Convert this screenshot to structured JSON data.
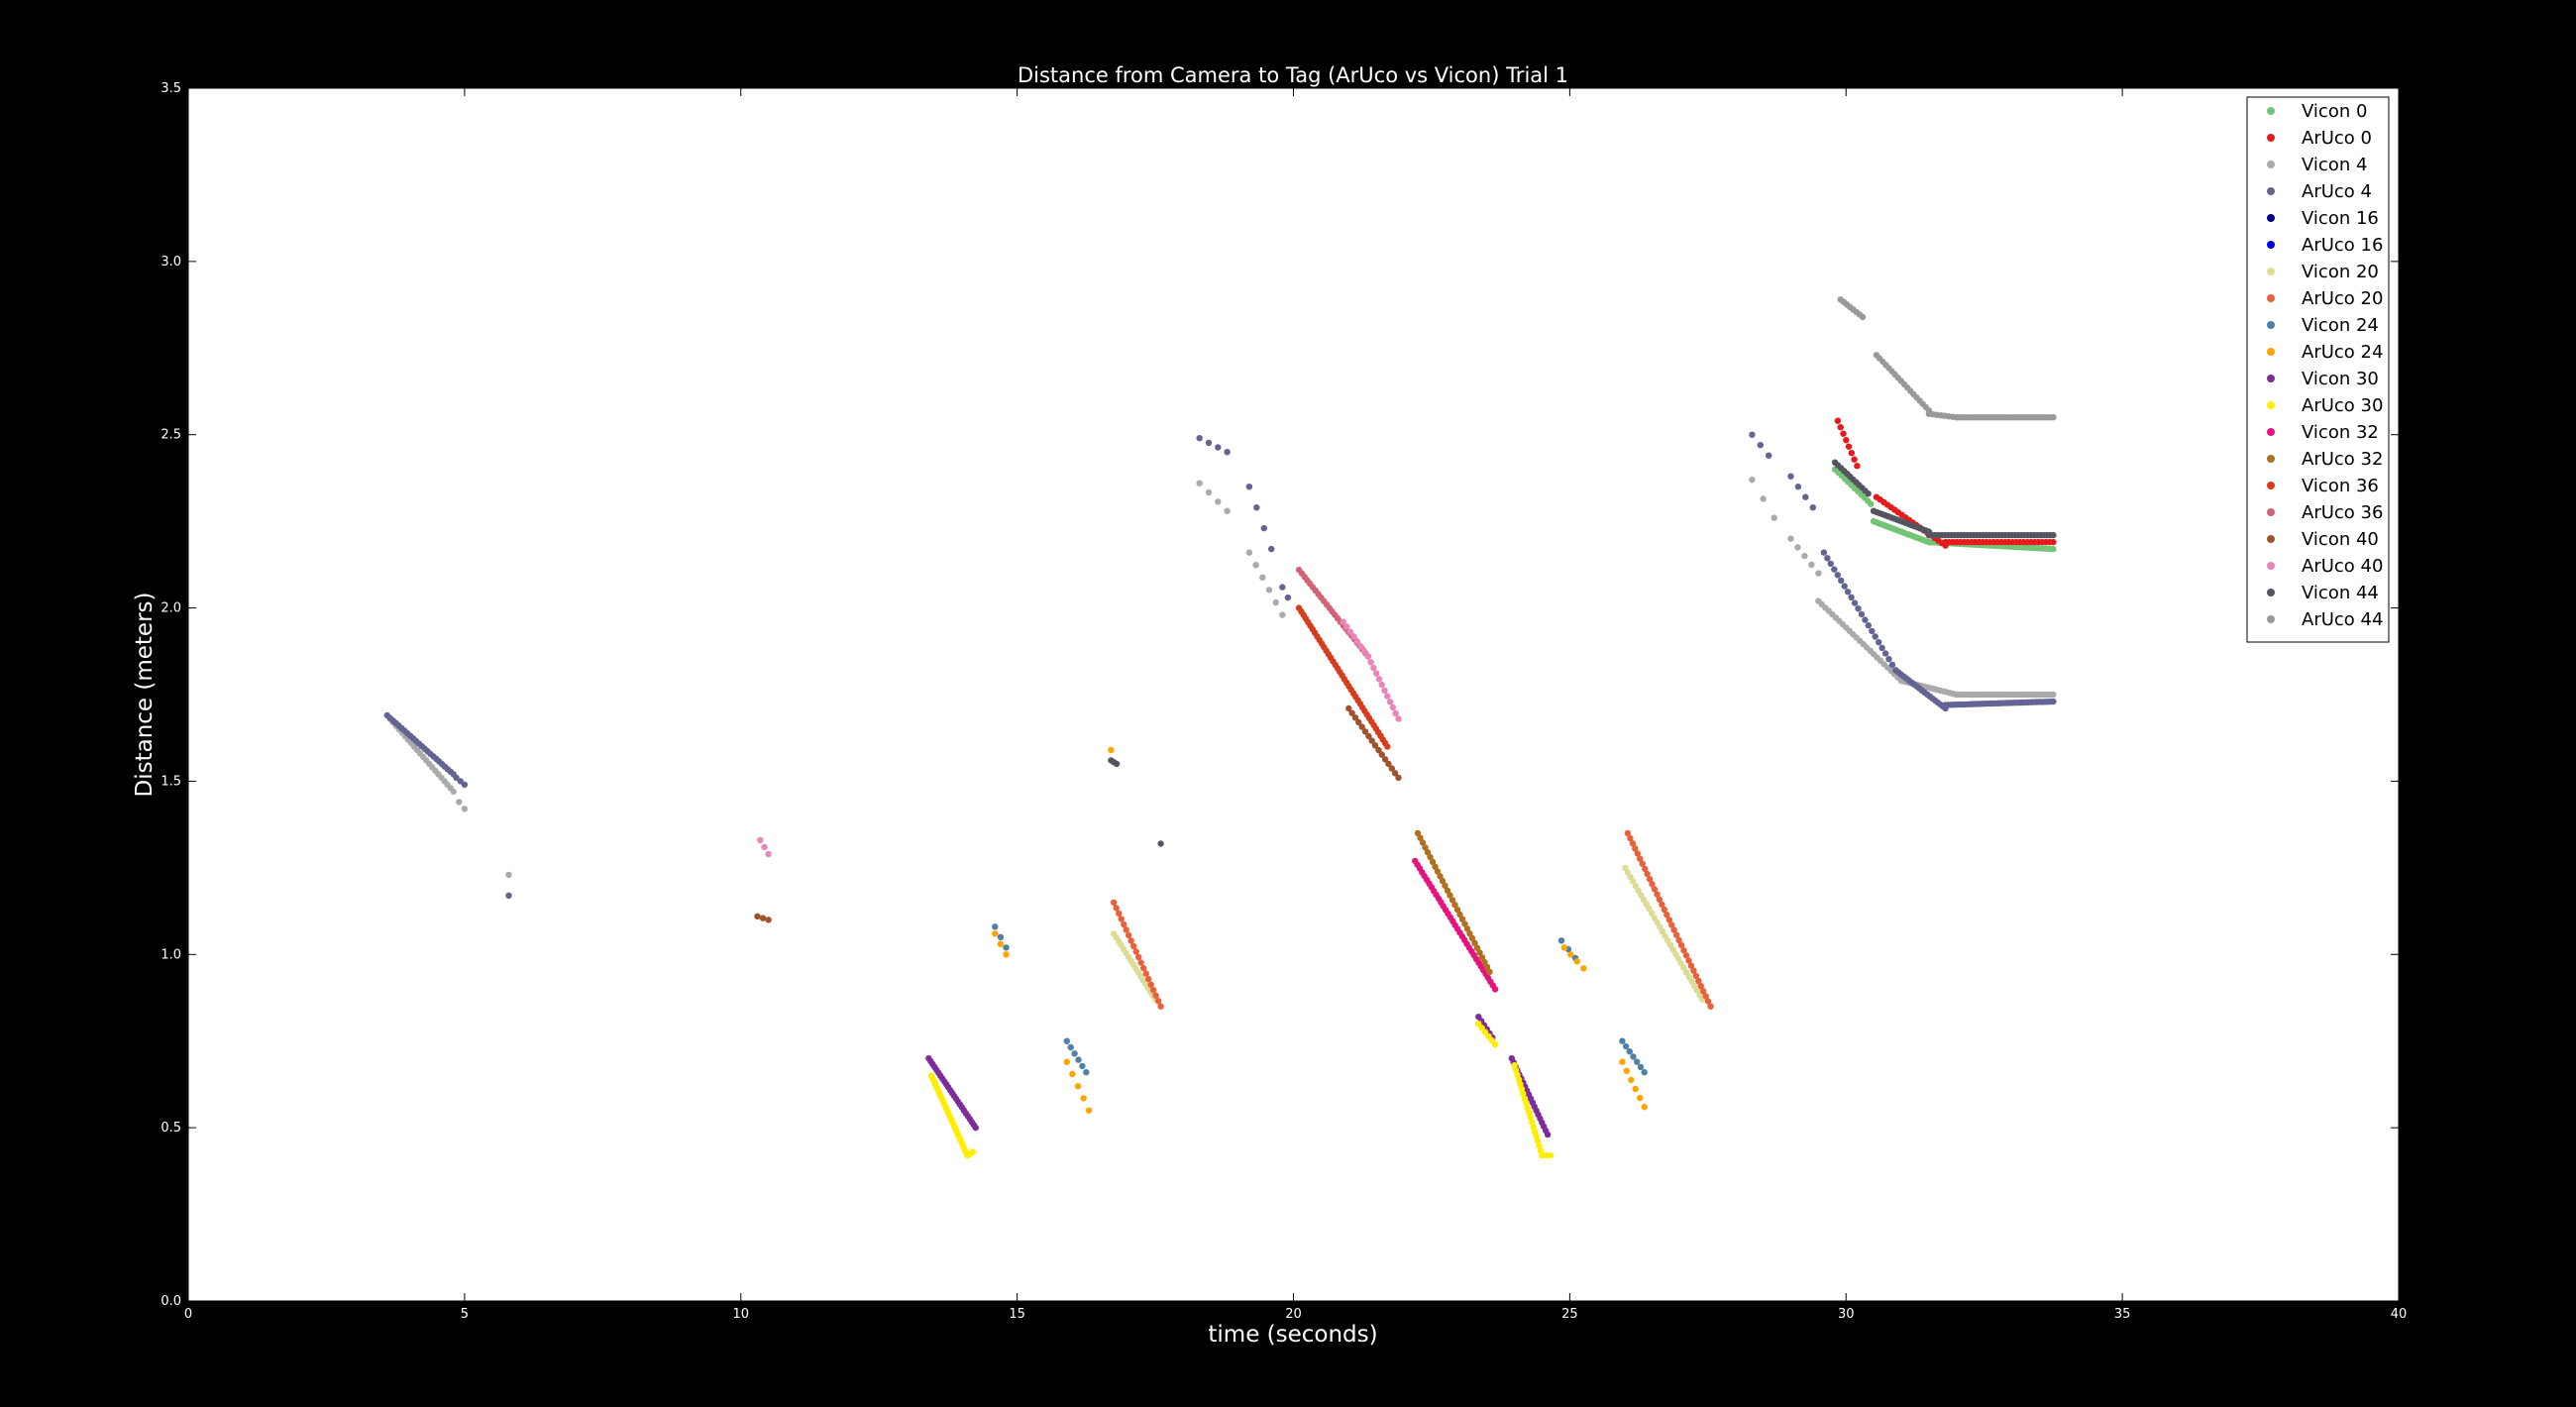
{
  "chart_data": {
    "type": "scatter",
    "title": "Distance from Camera to Tag (ArUco vs Vicon) Trial 1",
    "xlabel": "time (seconds)",
    "ylabel": "Distance (meters)",
    "xlim": [
      0,
      40
    ],
    "ylim": [
      0,
      3.5
    ],
    "xticks": [
      "0",
      "5",
      "10",
      "15",
      "20",
      "25",
      "30",
      "35",
      "40"
    ],
    "yticks": [
      "0.0",
      "0.5",
      "1.0",
      "1.5",
      "2.0",
      "2.5",
      "3.0",
      "3.5"
    ],
    "grid": false,
    "legend_position": "top-right",
    "background": "#000000",
    "plot_background": "#ffffff",
    "series": [
      {
        "name": "Vicon 0",
        "color": "#74c476",
        "segments": [
          {
            "x0": 29.8,
            "y0": 2.4,
            "x1": 30.45,
            "y1": 2.3,
            "n": 12
          },
          {
            "x0": 30.5,
            "y0": 2.25,
            "x1": 31.5,
            "y1": 2.19,
            "n": 25
          },
          {
            "x0": 31.5,
            "y0": 2.19,
            "x1": 33.75,
            "y1": 2.17,
            "n": 45
          }
        ]
      },
      {
        "name": "ArUco 0",
        "color": "#e41a1c",
        "segments": [
          {
            "x0": 29.85,
            "y0": 2.54,
            "x1": 30.2,
            "y1": 2.41,
            "n": 8
          },
          {
            "x0": 30.55,
            "y0": 2.32,
            "x1": 31.8,
            "y1": 2.18,
            "n": 20
          },
          {
            "x0": 31.8,
            "y0": 2.19,
            "x1": 33.75,
            "y1": 2.19,
            "n": 30
          }
        ]
      },
      {
        "name": "Vicon 4",
        "color": "#aaaaaa",
        "segments": [
          {
            "x0": 3.65,
            "y0": 1.68,
            "x1": 4.8,
            "y1": 1.47,
            "n": 22
          },
          {
            "x0": 4.9,
            "y0": 1.44,
            "x1": 5.0,
            "y1": 1.42,
            "n": 2
          },
          {
            "x0": 5.8,
            "y0": 1.23,
            "x1": 5.8,
            "y1": 1.23,
            "n": 1
          },
          {
            "x0": 18.3,
            "y0": 2.36,
            "x1": 18.8,
            "y1": 2.28,
            "n": 4
          },
          {
            "x0": 19.2,
            "y0": 2.16,
            "x1": 19.8,
            "y1": 1.98,
            "n": 6
          },
          {
            "x0": 28.3,
            "y0": 2.37,
            "x1": 28.7,
            "y1": 2.26,
            "n": 3
          },
          {
            "x0": 29.0,
            "y0": 2.2,
            "x1": 29.5,
            "y1": 2.1,
            "n": 5
          },
          {
            "x0": 29.5,
            "y0": 2.02,
            "x1": 31.0,
            "y1": 1.79,
            "n": 25
          },
          {
            "x0": 31.0,
            "y0": 1.79,
            "x1": 32.0,
            "y1": 1.75,
            "n": 18
          },
          {
            "x0": 32.0,
            "y0": 1.75,
            "x1": 33.75,
            "y1": 1.75,
            "n": 35
          }
        ]
      },
      {
        "name": "ArUco 4",
        "color": "#636394",
        "segments": [
          {
            "x0": 3.6,
            "y0": 1.69,
            "x1": 4.8,
            "y1": 1.52,
            "n": 24
          },
          {
            "x0": 4.85,
            "y0": 1.51,
            "x1": 5.0,
            "y1": 1.49,
            "n": 3
          },
          {
            "x0": 5.8,
            "y0": 1.17,
            "x1": 5.8,
            "y1": 1.17,
            "n": 1
          },
          {
            "x0": 18.3,
            "y0": 2.49,
            "x1": 18.8,
            "y1": 2.45,
            "n": 4
          },
          {
            "x0": 19.2,
            "y0": 2.35,
            "x1": 19.6,
            "y1": 2.17,
            "n": 4
          },
          {
            "x0": 19.8,
            "y0": 2.06,
            "x1": 19.9,
            "y1": 2.03,
            "n": 2
          },
          {
            "x0": 28.3,
            "y0": 2.5,
            "x1": 28.6,
            "y1": 2.44,
            "n": 3
          },
          {
            "x0": 29.0,
            "y0": 2.38,
            "x1": 29.4,
            "y1": 2.29,
            "n": 4
          },
          {
            "x0": 29.6,
            "y0": 2.16,
            "x1": 30.9,
            "y1": 1.82,
            "n": 22
          },
          {
            "x0": 30.9,
            "y0": 1.82,
            "x1": 31.8,
            "y1": 1.71,
            "n": 20
          },
          {
            "x0": 31.8,
            "y0": 1.72,
            "x1": 33.75,
            "y1": 1.73,
            "n": 40
          }
        ]
      },
      {
        "name": "Vicon 16",
        "color": "#00008b",
        "segments": []
      },
      {
        "name": "ArUco 16",
        "color": "#0000ee",
        "segments": []
      },
      {
        "name": "Vicon 20",
        "color": "#dcdc96",
        "segments": [
          {
            "x0": 16.75,
            "y0": 1.06,
            "x1": 17.5,
            "y1": 0.87,
            "n": 18
          },
          {
            "x0": 26.0,
            "y0": 1.25,
            "x1": 27.4,
            "y1": 0.87,
            "n": 30
          }
        ]
      },
      {
        "name": "ArUco 20",
        "color": "#e8613a",
        "segments": [
          {
            "x0": 16.75,
            "y0": 1.15,
            "x1": 17.6,
            "y1": 0.85,
            "n": 20
          },
          {
            "x0": 26.05,
            "y0": 1.35,
            "x1": 27.55,
            "y1": 0.85,
            "n": 35
          }
        ]
      },
      {
        "name": "Vicon 24",
        "color": "#4f81a8",
        "segments": [
          {
            "x0": 14.6,
            "y0": 1.08,
            "x1": 14.8,
            "y1": 1.02,
            "n": 3
          },
          {
            "x0": 15.9,
            "y0": 0.75,
            "x1": 16.25,
            "y1": 0.66,
            "n": 6
          },
          {
            "x0": 24.85,
            "y0": 1.04,
            "x1": 25.1,
            "y1": 0.99,
            "n": 3
          },
          {
            "x0": 25.95,
            "y0": 0.75,
            "x1": 26.35,
            "y1": 0.66,
            "n": 7
          }
        ]
      },
      {
        "name": "ArUco 24",
        "color": "#ffa500",
        "segments": [
          {
            "x0": 14.6,
            "y0": 1.06,
            "x1": 14.8,
            "y1": 1.0,
            "n": 3
          },
          {
            "x0": 15.9,
            "y0": 0.69,
            "x1": 16.3,
            "y1": 0.55,
            "n": 5
          },
          {
            "x0": 16.7,
            "y0": 1.59,
            "x1": 16.7,
            "y1": 1.59,
            "n": 1
          },
          {
            "x0": 24.9,
            "y0": 1.02,
            "x1": 25.25,
            "y1": 0.96,
            "n": 4
          },
          {
            "x0": 25.95,
            "y0": 0.69,
            "x1": 26.35,
            "y1": 0.56,
            "n": 6
          }
        ]
      },
      {
        "name": "Vicon 30",
        "color": "#7d2d9a",
        "segments": [
          {
            "x0": 13.4,
            "y0": 0.7,
            "x1": 14.25,
            "y1": 0.5,
            "n": 25
          },
          {
            "x0": 23.35,
            "y0": 0.82,
            "x1": 23.6,
            "y1": 0.76,
            "n": 6
          },
          {
            "x0": 23.95,
            "y0": 0.7,
            "x1": 24.6,
            "y1": 0.48,
            "n": 20
          }
        ]
      },
      {
        "name": "ArUco 30",
        "color": "#ffee00",
        "segments": [
          {
            "x0": 13.45,
            "y0": 0.65,
            "x1": 14.1,
            "y1": 0.42,
            "n": 28
          },
          {
            "x0": 14.1,
            "y0": 0.42,
            "x1": 14.2,
            "y1": 0.43,
            "n": 3
          },
          {
            "x0": 23.35,
            "y0": 0.8,
            "x1": 23.65,
            "y1": 0.74,
            "n": 6
          },
          {
            "x0": 24.0,
            "y0": 0.68,
            "x1": 24.5,
            "y1": 0.42,
            "n": 20
          },
          {
            "x0": 24.5,
            "y0": 0.42,
            "x1": 24.65,
            "y1": 0.42,
            "n": 3
          }
        ]
      },
      {
        "name": "Vicon 32",
        "color": "#e7127e",
        "segments": [
          {
            "x0": 22.2,
            "y0": 1.27,
            "x1": 23.65,
            "y1": 0.9,
            "n": 35
          }
        ]
      },
      {
        "name": "ArUco 32",
        "color": "#b07020",
        "segments": [
          {
            "x0": 22.25,
            "y0": 1.35,
            "x1": 23.55,
            "y1": 0.95,
            "n": 30
          }
        ]
      },
      {
        "name": "Vicon 36",
        "color": "#d73c1c",
        "segments": [
          {
            "x0": 20.1,
            "y0": 2.0,
            "x1": 21.7,
            "y1": 1.6,
            "n": 40
          }
        ]
      },
      {
        "name": "ArUco 36",
        "color": "#d46276",
        "segments": [
          {
            "x0": 20.1,
            "y0": 2.11,
            "x1": 21.35,
            "y1": 1.86,
            "n": 26
          }
        ]
      },
      {
        "name": "Vicon 40",
        "color": "#a0522d",
        "segments": [
          {
            "x0": 10.3,
            "y0": 1.11,
            "x1": 10.5,
            "y1": 1.1,
            "n": 3
          },
          {
            "x0": 21.0,
            "y0": 1.71,
            "x1": 21.9,
            "y1": 1.51,
            "n": 16
          }
        ]
      },
      {
        "name": "ArUco 40",
        "color": "#e985b8",
        "segments": [
          {
            "x0": 10.35,
            "y0": 1.33,
            "x1": 10.5,
            "y1": 1.29,
            "n": 3
          },
          {
            "x0": 20.9,
            "y0": 1.96,
            "x1": 21.35,
            "y1": 1.86,
            "n": 8
          },
          {
            "x0": 21.35,
            "y0": 1.86,
            "x1": 21.9,
            "y1": 1.68,
            "n": 12
          }
        ]
      },
      {
        "name": "Vicon 44",
        "color": "#555560",
        "segments": [
          {
            "x0": 16.7,
            "y0": 1.56,
            "x1": 16.8,
            "y1": 1.55,
            "n": 3
          },
          {
            "x0": 17.6,
            "y0": 1.32,
            "x1": 17.6,
            "y1": 1.32,
            "n": 1
          },
          {
            "x0": 29.8,
            "y0": 2.42,
            "x1": 30.4,
            "y1": 2.33,
            "n": 12
          },
          {
            "x0": 30.5,
            "y0": 2.28,
            "x1": 31.5,
            "y1": 2.22,
            "n": 20
          },
          {
            "x0": 31.5,
            "y0": 2.21,
            "x1": 33.75,
            "y1": 2.21,
            "n": 40
          }
        ]
      },
      {
        "name": "ArUco 44",
        "color": "#999999",
        "segments": [
          {
            "x0": 29.9,
            "y0": 2.89,
            "x1": 30.3,
            "y1": 2.84,
            "n": 8
          },
          {
            "x0": 30.55,
            "y0": 2.73,
            "x1": 31.5,
            "y1": 2.57,
            "n": 18
          },
          {
            "x0": 31.5,
            "y0": 2.56,
            "x1": 32.0,
            "y1": 2.55,
            "n": 8
          },
          {
            "x0": 32.0,
            "y0": 2.55,
            "x1": 33.75,
            "y1": 2.55,
            "n": 35
          }
        ]
      }
    ]
  }
}
